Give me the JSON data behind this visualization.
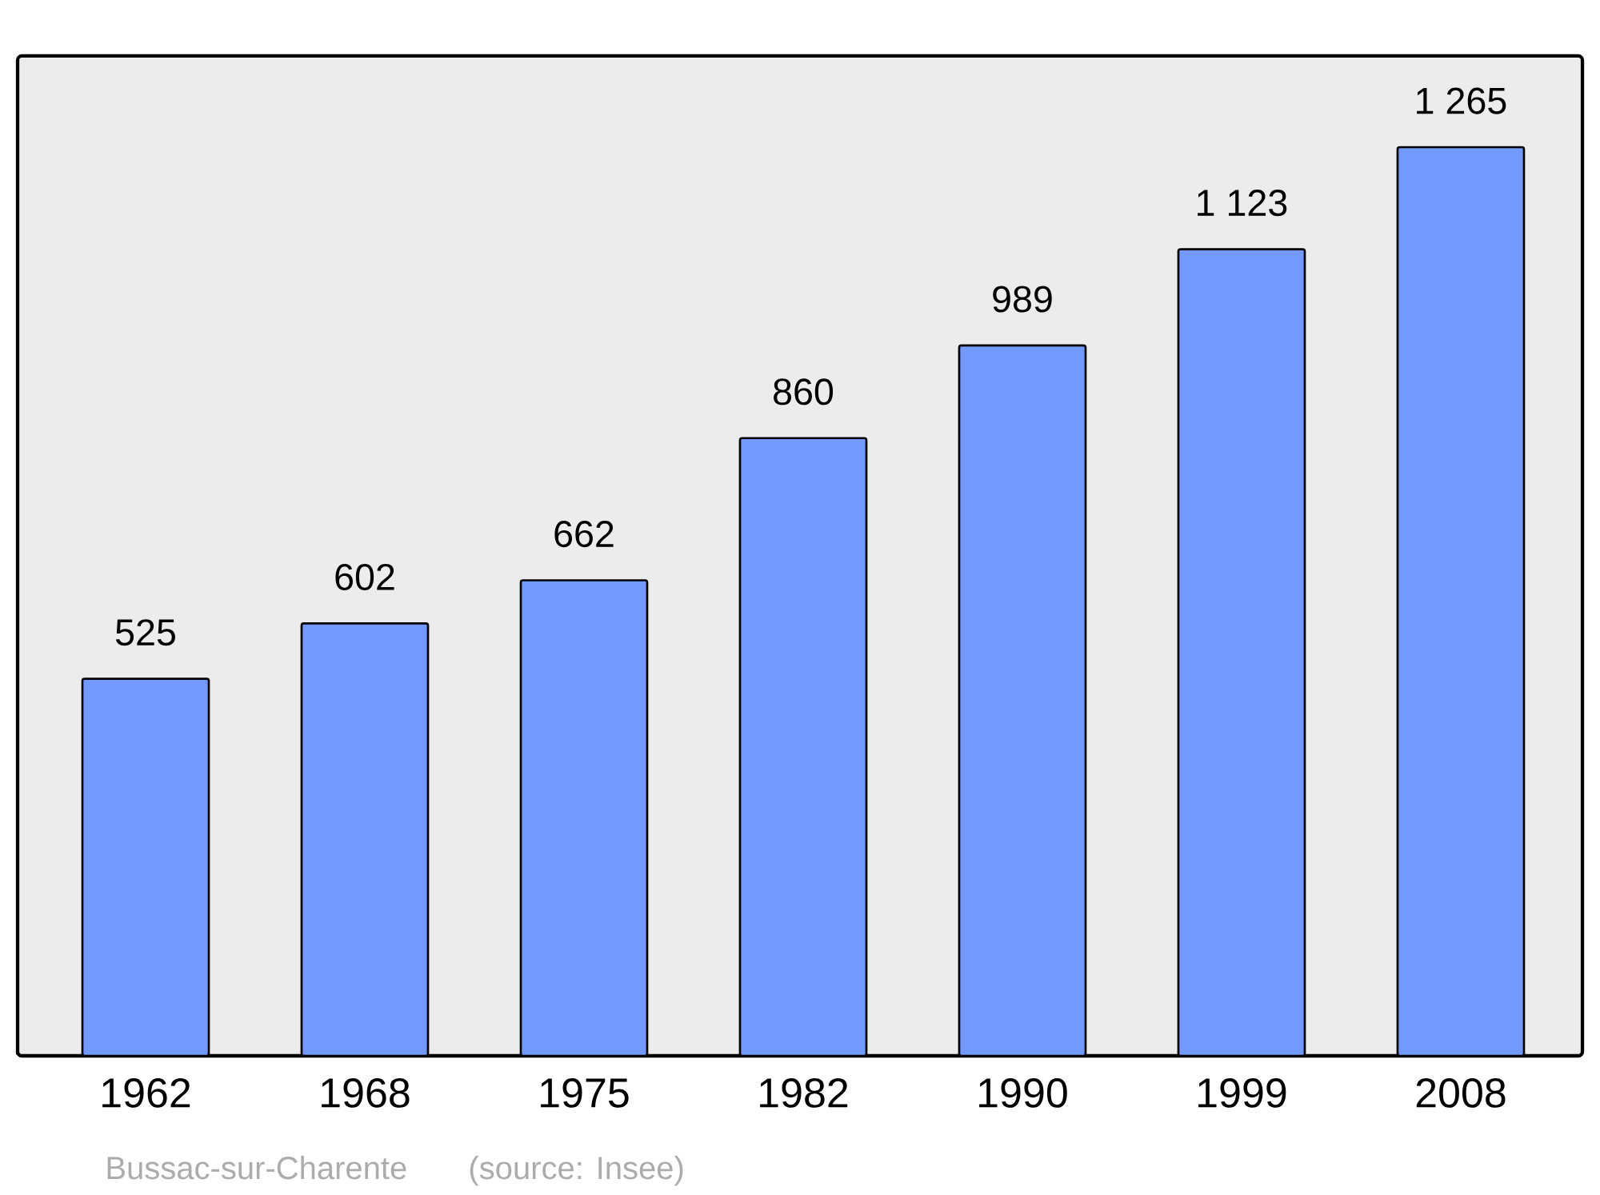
{
  "chart_data": {
    "type": "bar",
    "categories": [
      "1962",
      "1968",
      "1975",
      "1982",
      "1990",
      "1999",
      "2008"
    ],
    "values": [
      525,
      602,
      662,
      860,
      989,
      1123,
      1265
    ],
    "value_labels": [
      "525",
      "602",
      "662",
      "860",
      "989",
      "1 123",
      "1 265"
    ],
    "color": "#7399ff",
    "ylim": [
      0,
      1392
    ],
    "annotations": [
      "Bussac-sur-Charente",
      "(source: Insee)"
    ]
  }
}
